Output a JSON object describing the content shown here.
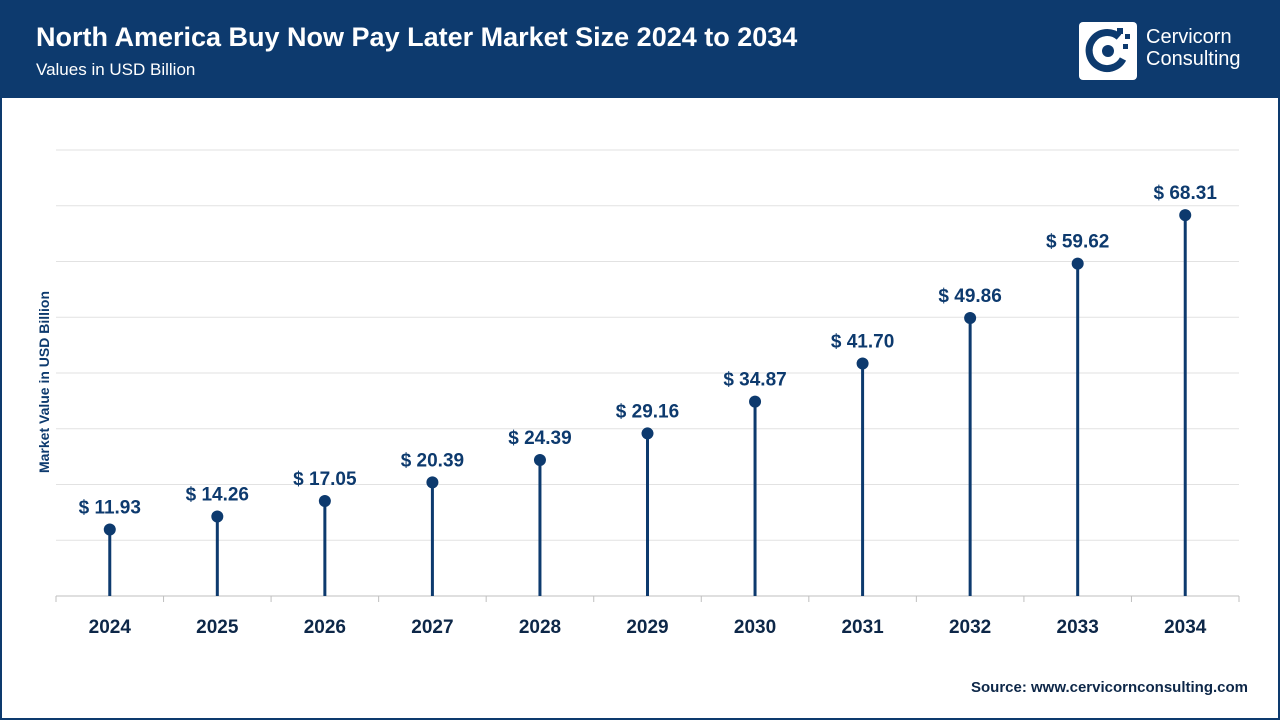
{
  "header": {
    "title": "North America Buy Now Pay Later Market Size 2024 to 2034",
    "subtitle": "Values in USD Billion"
  },
  "brand": {
    "line1": "Cervicorn",
    "line2": "Consulting",
    "logo_icon": "cervicorn-logo-icon"
  },
  "source": "Source: www.cervicornconsulting.com",
  "colors": {
    "header_bg": "#0d3a6e",
    "marker": "#0d3a6e",
    "grid": "#e2e2e2"
  },
  "chart_data": {
    "type": "lollipop",
    "title": "North America Buy Now Pay Later Market Size 2024 to 2034",
    "subtitle": "Values in USD Billion",
    "xlabel": "",
    "ylabel": "Market Value in USD Billion",
    "categories": [
      "2024",
      "2025",
      "2026",
      "2027",
      "2028",
      "2029",
      "2030",
      "2031",
      "2032",
      "2033",
      "2034"
    ],
    "values": [
      11.93,
      14.26,
      17.05,
      20.39,
      24.39,
      29.16,
      34.87,
      41.7,
      49.86,
      59.62,
      68.31
    ],
    "value_labels": [
      "$ 11.93",
      "$ 14.26",
      "$ 17.05",
      "$ 20.39",
      "$ 24.39",
      "$ 29.16",
      "$ 34.87",
      "$ 41.70",
      "$ 49.86",
      "$ 59.62",
      "$ 68.31"
    ],
    "ylim": [
      0,
      80
    ],
    "grid": true,
    "legend": "none"
  }
}
